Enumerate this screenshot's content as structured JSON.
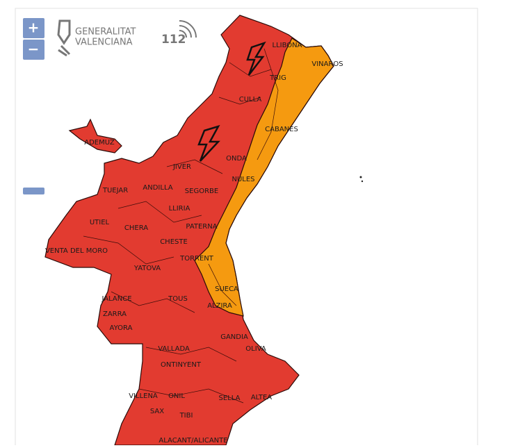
{
  "controls": {
    "zoom_in": "+",
    "zoom_out": "−"
  },
  "logos": {
    "generalitat": [
      "GENERALITAT",
      "VALENCIANA"
    ],
    "emergency": "112"
  },
  "map": {
    "places": [
      "LLIBONA",
      "VINAROS",
      "TRIG",
      "CULLA",
      "CABANES",
      "ADEMUZ",
      "ONDA",
      "JIVER",
      "TUEJAR",
      "ANDILLA",
      "SEGORBE",
      "NULES",
      "UTIEL",
      "CHERA",
      "LLIRIA",
      "PATERNA",
      "VENTA DEL MORO",
      "CHESTE",
      "TORRENT",
      "YATOVA",
      "SUECA",
      "JALANCE",
      "TOUS",
      "ALZIRA",
      "ZARRA",
      "AYORA",
      "GANDIA",
      "OLIVA",
      "VALLADA",
      "ONTINYENT",
      "VILLENA",
      "ONIL",
      "SELLA",
      "ALTEA",
      "SAX",
      "TIBI",
      "ALACANT/ALICANTE"
    ]
  }
}
